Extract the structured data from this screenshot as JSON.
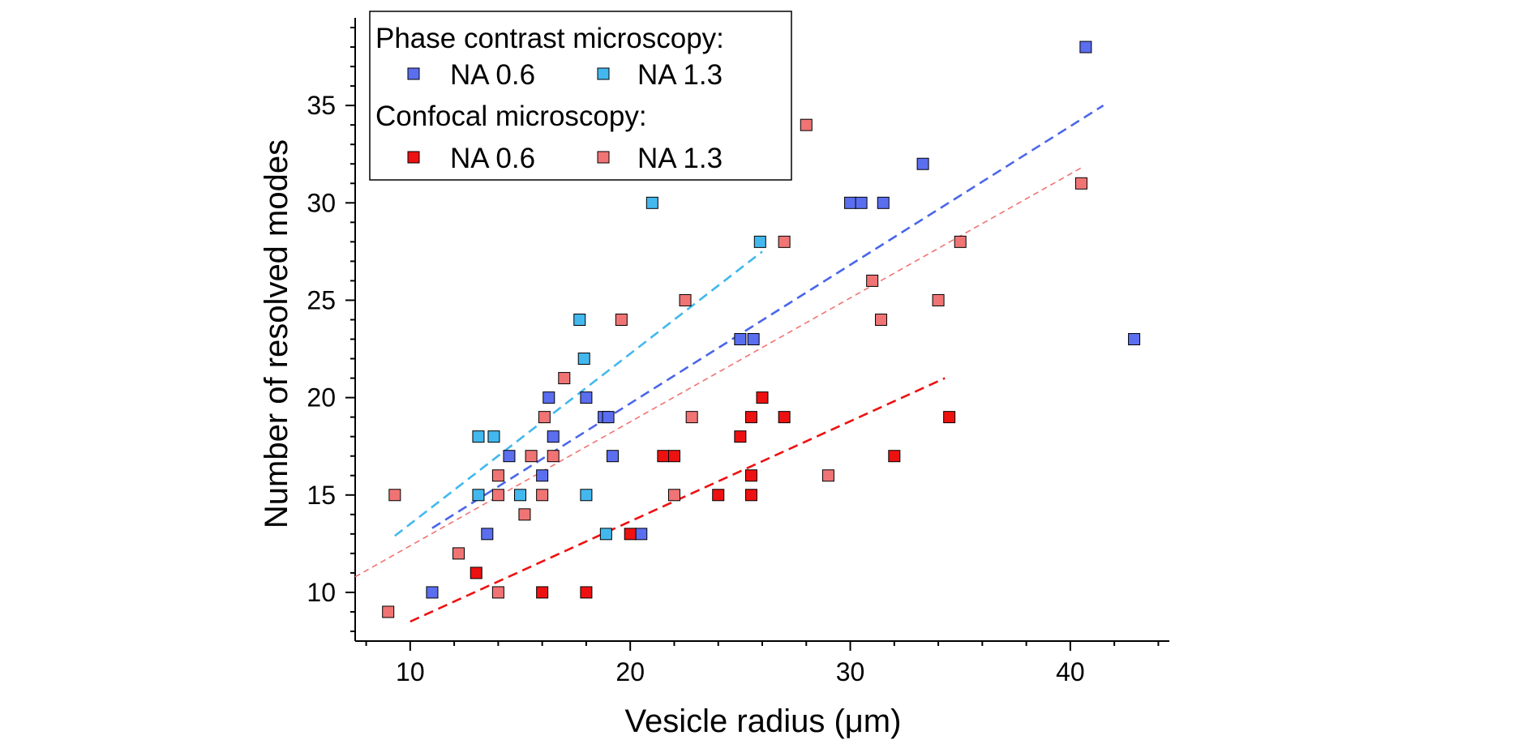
{
  "chart_data": {
    "type": "scatter",
    "title": "",
    "xlabel": "Vesicle radius (μm)",
    "ylabel": "Number of resolved modes",
    "xlim": [
      7.5,
      44.5
    ],
    "ylim": [
      7.5,
      39.5
    ],
    "x_ticks": [
      "10",
      "20",
      "30",
      "40"
    ],
    "y_ticks": [
      "10",
      "15",
      "20",
      "25",
      "30",
      "35"
    ],
    "grid": false,
    "legend_placement": "top-left",
    "legend": {
      "groups": [
        {
          "title": "Phase contrast microscopy:",
          "entries": [
            "NA 0.6",
            "NA 1.3"
          ]
        },
        {
          "title": "Confocal microscopy:",
          "entries": [
            "NA 0.6",
            "NA 1.3"
          ]
        }
      ]
    },
    "series": [
      {
        "name": "Phase contrast NA 0.6",
        "color": "#5b6ef0",
        "points": [
          [
            11,
            10
          ],
          [
            13.5,
            13
          ],
          [
            14.5,
            17
          ],
          [
            16,
            16
          ],
          [
            16.3,
            20
          ],
          [
            16.5,
            18
          ],
          [
            18,
            20
          ],
          [
            18.8,
            19
          ],
          [
            19,
            19
          ],
          [
            19.2,
            17
          ],
          [
            20.5,
            13
          ],
          [
            25,
            23
          ],
          [
            25.6,
            23
          ],
          [
            30,
            30
          ],
          [
            30.5,
            30
          ],
          [
            31.5,
            30
          ],
          [
            33.3,
            32
          ],
          [
            40.7,
            38
          ],
          [
            42.9,
            23
          ]
        ]
      },
      {
        "name": "Phase contrast NA 1.3",
        "color": "#42b8ee",
        "points": [
          [
            13.1,
            18
          ],
          [
            13.1,
            15
          ],
          [
            13.8,
            18
          ],
          [
            15,
            15
          ],
          [
            17.7,
            24
          ],
          [
            17.9,
            22
          ],
          [
            18,
            15
          ],
          [
            18.9,
            13
          ],
          [
            21,
            30
          ],
          [
            25.9,
            28
          ]
        ]
      },
      {
        "name": "Confocal NA 0.6",
        "color": "#ee1111",
        "points": [
          [
            13,
            11
          ],
          [
            16,
            10
          ],
          [
            18,
            10
          ],
          [
            20,
            13
          ],
          [
            21.5,
            17
          ],
          [
            22,
            17
          ],
          [
            24,
            15
          ],
          [
            25,
            18
          ],
          [
            25.5,
            19
          ],
          [
            25.5,
            16
          ],
          [
            25.5,
            15
          ],
          [
            26,
            20
          ],
          [
            27,
            19
          ],
          [
            32,
            17
          ],
          [
            34.5,
            19
          ]
        ]
      },
      {
        "name": "Confocal NA 1.3",
        "color": "#f07474",
        "points": [
          [
            9,
            9
          ],
          [
            9.3,
            15
          ],
          [
            12.2,
            12
          ],
          [
            14,
            16
          ],
          [
            14,
            15
          ],
          [
            14,
            10
          ],
          [
            15.2,
            14
          ],
          [
            15.5,
            17
          ],
          [
            16,
            15
          ],
          [
            16.1,
            19
          ],
          [
            16.5,
            17
          ],
          [
            17,
            21
          ],
          [
            19.6,
            24
          ],
          [
            22,
            15
          ],
          [
            22.5,
            25
          ],
          [
            22.8,
            19
          ],
          [
            27,
            28
          ],
          [
            28,
            34
          ],
          [
            29,
            16
          ],
          [
            31,
            26
          ],
          [
            31.4,
            24
          ],
          [
            34,
            25
          ],
          [
            35,
            28
          ],
          [
            40.5,
            31
          ]
        ]
      }
    ],
    "fit_lines": [
      {
        "series": "Phase contrast NA 0.6",
        "color": "#4a66ea",
        "x": [
          11,
          41.5
        ],
        "y": [
          13.3,
          35
        ]
      },
      {
        "series": "Phase contrast NA 1.3",
        "color": "#42b8ee",
        "x": [
          9.3,
          26
        ],
        "y": [
          12.9,
          27.5
        ]
      },
      {
        "series": "Confocal NA 0.6",
        "color": "#ee1111",
        "x": [
          10,
          34.3
        ],
        "y": [
          8.5,
          21
        ]
      },
      {
        "series": "Confocal NA 1.3",
        "color": "#f07474",
        "x": [
          7.5,
          40.5
        ],
        "y": [
          10.8,
          31.8
        ]
      }
    ]
  }
}
